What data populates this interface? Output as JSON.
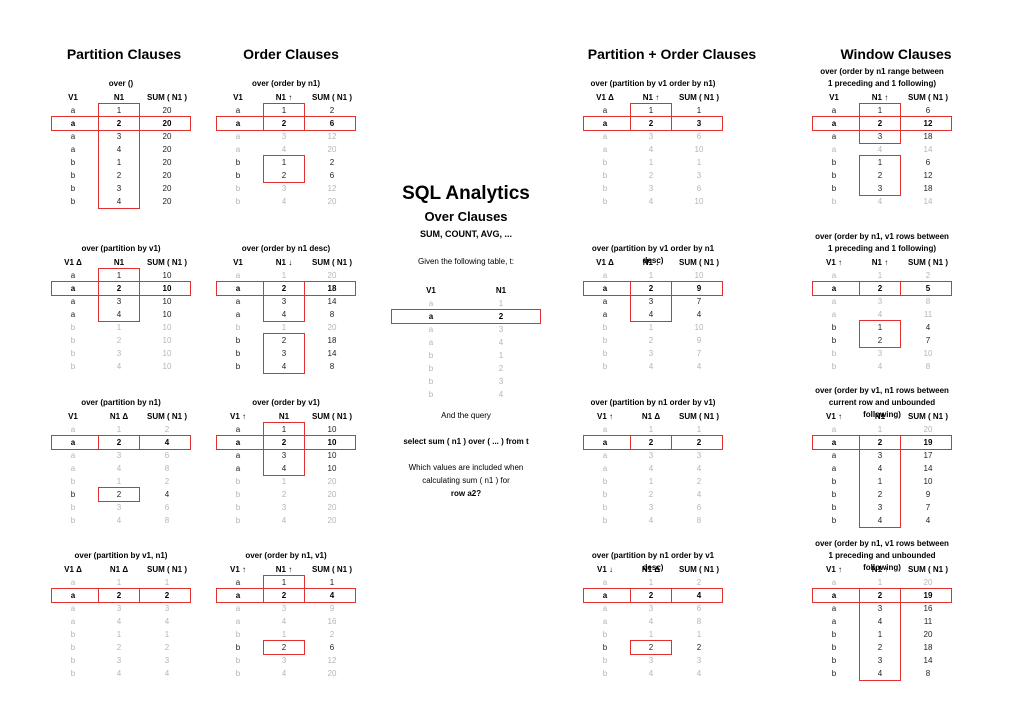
{
  "headers": {
    "partition": "Partition Clauses",
    "order": "Order Clauses",
    "partition_order": "Partition + Order Clauses",
    "window": "Window Clauses"
  },
  "center": {
    "title": "SQL Analytics",
    "subtitle": "Over Clauses",
    "functions": "SUM, COUNT, AVG, ...",
    "given": "Given the following table, t:",
    "table_headers": [
      "V1",
      "N1"
    ],
    "table_rows": [
      [
        "a",
        "1"
      ],
      [
        "a",
        "2"
      ],
      [
        "a",
        "3"
      ],
      [
        "a",
        "4"
      ],
      [
        "b",
        "1"
      ],
      [
        "b",
        "2"
      ],
      [
        "b",
        "3"
      ],
      [
        "b",
        "4"
      ]
    ],
    "and_query": "And the query",
    "query": "select sum ( n1 ) over ( ... ) from t",
    "question_1": "Which values are included when",
    "question_2": "calculating sum ( n1 ) for",
    "question_3": "row a2?"
  },
  "blocks": [
    {
      "caption": [
        "over ()"
      ],
      "headers": [
        "V1",
        "N1",
        "SUM ( N1 )"
      ],
      "sums": [
        "20",
        "20",
        "20",
        "20",
        "20",
        "20",
        "20",
        "20"
      ],
      "included": [
        1,
        2,
        3,
        4,
        5,
        6,
        7,
        8
      ]
    },
    {
      "caption": [
        "over (partition by v1)"
      ],
      "headers": [
        "V1 Δ",
        "N1",
        "SUM ( N1 )"
      ],
      "sums": [
        "10",
        "10",
        "10",
        "10",
        "10",
        "10",
        "10",
        "10"
      ],
      "included": [
        1,
        2,
        3,
        4
      ]
    },
    {
      "caption": [
        "over (partition by n1)"
      ],
      "headers": [
        "V1",
        "N1 Δ",
        "SUM ( N1 )"
      ],
      "sums": [
        "2",
        "4",
        "6",
        "8",
        "2",
        "4",
        "6",
        "8"
      ],
      "included": [
        2,
        6
      ]
    },
    {
      "caption": [
        "over (partition by v1, n1)"
      ],
      "headers": [
        "V1 Δ",
        "N1 Δ",
        "SUM ( N1 )"
      ],
      "sums": [
        "1",
        "2",
        "3",
        "4",
        "1",
        "2",
        "3",
        "4"
      ],
      "included": [
        2
      ]
    },
    {
      "caption": [
        "over (order by n1)"
      ],
      "headers": [
        "V1",
        "N1 ↑",
        "SUM ( N1 )"
      ],
      "sums": [
        "2",
        "6",
        "12",
        "20",
        "2",
        "6",
        "12",
        "20"
      ],
      "included": [
        1,
        2,
        5,
        6
      ]
    },
    {
      "caption": [
        "over (order by n1 desc)"
      ],
      "headers": [
        "V1",
        "N1 ↓",
        "SUM ( N1 )"
      ],
      "sums": [
        "20",
        "18",
        "14",
        "8",
        "20",
        "18",
        "14",
        "8"
      ],
      "included": [
        2,
        3,
        4,
        6,
        7,
        8
      ]
    },
    {
      "caption": [
        "over (order by v1)"
      ],
      "headers": [
        "V1 ↑",
        "N1",
        "SUM ( N1 )"
      ],
      "sums": [
        "10",
        "10",
        "10",
        "10",
        "20",
        "20",
        "20",
        "20"
      ],
      "included": [
        1,
        2,
        3,
        4
      ]
    },
    {
      "caption": [
        "over (order by n1, v1)"
      ],
      "headers": [
        "V1 ↑",
        "N1 ↑",
        "SUM ( N1 )"
      ],
      "sums": [
        "1",
        "4",
        "9",
        "16",
        "2",
        "6",
        "12",
        "20"
      ],
      "included": [
        1,
        2,
        6
      ]
    },
    {
      "caption": [
        "over (partition by v1 order by n1)"
      ],
      "headers": [
        "V1 Δ",
        "N1 ↑",
        "SUM ( N1 )"
      ],
      "sums": [
        "1",
        "3",
        "6",
        "10",
        "1",
        "3",
        "6",
        "10"
      ],
      "included": [
        1,
        2
      ]
    },
    {
      "caption": [
        "over (partition by v1 order by n1 desc)"
      ],
      "headers": [
        "V1 Δ",
        "N1 ↓",
        "SUM ( N1 )"
      ],
      "sums": [
        "10",
        "9",
        "7",
        "4",
        "10",
        "9",
        "7",
        "4"
      ],
      "included": [
        2,
        3,
        4
      ]
    },
    {
      "caption": [
        "over (partition by n1 order by v1)"
      ],
      "headers": [
        "V1 ↑",
        "N1 Δ",
        "SUM ( N1 )"
      ],
      "sums": [
        "1",
        "2",
        "3",
        "4",
        "2",
        "4",
        "6",
        "8"
      ],
      "included": [
        2
      ]
    },
    {
      "caption": [
        "over (partition by n1 order by v1 desc)"
      ],
      "headers": [
        "V1 ↓",
        "N1 Δ",
        "SUM ( N1 )"
      ],
      "sums": [
        "2",
        "4",
        "6",
        "8",
        "1",
        "2",
        "3",
        "4"
      ],
      "included": [
        2,
        6
      ]
    },
    {
      "caption": [
        "over (order by n1 range between",
        "1 preceding and 1 following)"
      ],
      "headers": [
        "V1",
        "N1 ↑",
        "SUM ( N1 )"
      ],
      "sums": [
        "6",
        "12",
        "18",
        "14",
        "6",
        "12",
        "18",
        "14"
      ],
      "included": [
        1,
        2,
        3,
        5,
        6,
        7
      ]
    },
    {
      "caption": [
        "over (order by n1, v1 rows between",
        "1 preceding and 1 following)"
      ],
      "headers": [
        "V1 ↑",
        "N1 ↑",
        "SUM ( N1 )"
      ],
      "sums": [
        "2",
        "5",
        "8",
        "11",
        "4",
        "7",
        "10",
        "8"
      ],
      "included": [
        2,
        5,
        6
      ]
    },
    {
      "caption": [
        "over (order by v1, n1 rows between",
        "current row and unbounded following)"
      ],
      "headers": [
        "V1 ↑",
        "N1",
        "SUM ( N1 )"
      ],
      "sums": [
        "20",
        "19",
        "17",
        "14",
        "10",
        "9",
        "7",
        "4"
      ],
      "included": [
        2,
        3,
        4,
        5,
        6,
        7,
        8
      ]
    },
    {
      "caption": [
        "over (order by n1, v1 rows between",
        "1 preceding and unbounded following)"
      ],
      "headers": [
        "V1 ↑",
        "N1 ↑",
        "SUM ( N1 )"
      ],
      "sums": [
        "20",
        "19",
        "16",
        "11",
        "20",
        "18",
        "14",
        "8"
      ],
      "included": [
        2,
        3,
        4,
        5,
        6,
        7,
        8
      ]
    }
  ],
  "base_v1": [
    "a",
    "a",
    "a",
    "a",
    "b",
    "b",
    "b",
    "b"
  ],
  "base_n1": [
    "1",
    "2",
    "3",
    "4",
    "1",
    "2",
    "3",
    "4"
  ],
  "current_row": 2,
  "accent_color": "#e03030"
}
